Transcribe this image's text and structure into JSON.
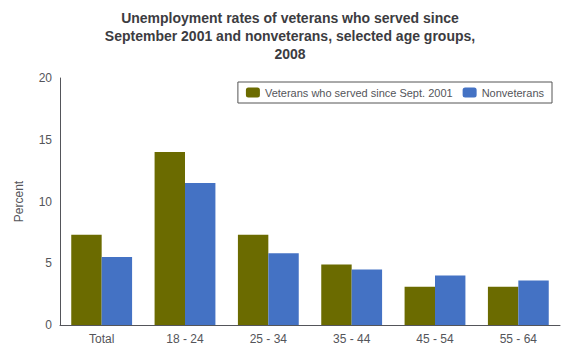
{
  "chart_data": {
    "type": "bar",
    "title": "Unemployment rates of veterans who served since\nSeptember 2001 and nonveterans, selected age groups,\n2008",
    "categories": [
      "Total",
      "18 - 24",
      "25 - 34",
      "35 - 44",
      "45 - 54",
      "55 - 64"
    ],
    "series": [
      {
        "name": "Veterans who served since Sept. 2001",
        "color": "#6b6b00",
        "values": [
          7.3,
          14.0,
          7.3,
          4.9,
          3.1,
          3.1
        ]
      },
      {
        "name": "Nonveterans",
        "color": "#4472c4",
        "values": [
          5.5,
          11.5,
          5.8,
          4.5,
          4.0,
          3.6
        ]
      }
    ],
    "ylabel": "Percent",
    "ylim": [
      0,
      20
    ],
    "yticks": [
      0,
      5,
      10,
      15,
      20
    ],
    "grid": false,
    "legend": "upper right"
  }
}
